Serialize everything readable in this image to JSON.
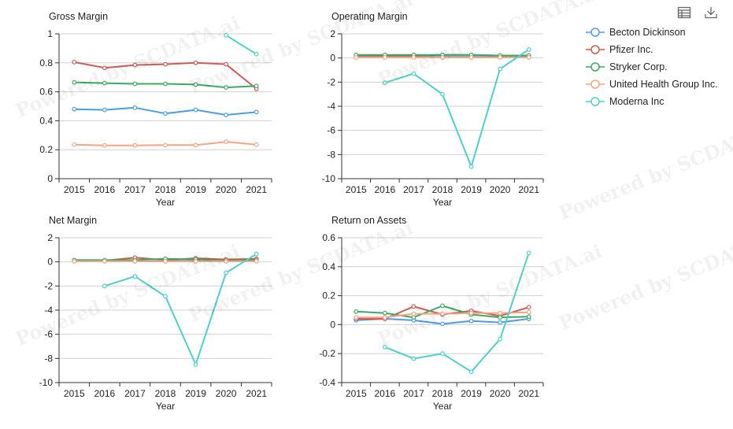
{
  "toolbar": {
    "table_icon": "table-icon",
    "download_icon": "download-icon"
  },
  "watermark": "Powered by SCDATA.ai",
  "colors": {
    "Becton Dickinson": "#4e9be6",
    "Pfizer Inc.": "#cf5a55",
    "Stryker Corp.": "#3daa64",
    "United Health Group Inc.": "#f3a583",
    "Moderna Inc": "#4dd0cb"
  },
  "legend": [
    {
      "label": "Becton Dickinson"
    },
    {
      "label": "Pfizer Inc."
    },
    {
      "label": "Stryker Corp."
    },
    {
      "label": "United Health Group Inc."
    },
    {
      "label": "Moderna Inc"
    }
  ],
  "chart_data": [
    {
      "type": "line",
      "title": "Gross Margin",
      "xlabel": "Year",
      "ylabel": "",
      "categories": [
        "2015",
        "2016",
        "2017",
        "2018",
        "2019",
        "2020",
        "2021"
      ],
      "ylim": [
        0,
        1
      ],
      "yticks": [
        "0",
        "0.2",
        "0.4",
        "0.6",
        "0.8",
        "1"
      ],
      "ytick_values": [
        0,
        0.2,
        0.4,
        0.6,
        0.8,
        1
      ],
      "series": [
        {
          "name": "Becton Dickinson",
          "values": [
            0.48,
            0.475,
            0.49,
            0.45,
            0.475,
            0.44,
            0.46
          ]
        },
        {
          "name": "Pfizer Inc.",
          "values": [
            0.805,
            0.765,
            0.785,
            0.79,
            0.8,
            0.79,
            0.62
          ]
        },
        {
          "name": "Stryker Corp.",
          "values": [
            0.665,
            0.66,
            0.655,
            0.655,
            0.65,
            0.63,
            0.64
          ]
        },
        {
          "name": "United Health Group Inc.",
          "values": [
            0.235,
            0.23,
            0.23,
            0.232,
            0.232,
            0.255,
            0.235
          ]
        },
        {
          "name": "Moderna Inc",
          "values": [
            null,
            null,
            null,
            null,
            null,
            0.99,
            0.86
          ]
        }
      ]
    },
    {
      "type": "line",
      "title": "Operating Margin",
      "xlabel": "Year",
      "ylabel": "",
      "categories": [
        "2015",
        "2016",
        "2017",
        "2018",
        "2019",
        "2020",
        "2021"
      ],
      "ylim": [
        -10,
        2
      ],
      "yticks": [
        "-10",
        "-8",
        "-6",
        "-4",
        "-2",
        "0",
        "2"
      ],
      "ytick_values": [
        -10,
        -8,
        -6,
        -4,
        -2,
        0,
        2
      ],
      "series": [
        {
          "name": "Becton Dickinson",
          "values": [
            0.1,
            0.1,
            0.1,
            0.1,
            0.1,
            0.1,
            0.15
          ]
        },
        {
          "name": "Pfizer Inc.",
          "values": [
            0.2,
            0.2,
            0.2,
            0.25,
            0.25,
            0.2,
            0.2
          ]
        },
        {
          "name": "Stryker Corp.",
          "values": [
            0.25,
            0.25,
            0.25,
            0.25,
            0.25,
            0.2,
            0.2
          ]
        },
        {
          "name": "United Health Group Inc.",
          "values": [
            0.05,
            0.05,
            0.05,
            0.05,
            0.05,
            0.05,
            0.05
          ]
        },
        {
          "name": "Moderna Inc",
          "values": [
            null,
            -2.05,
            -1.3,
            -3.0,
            -9.0,
            -0.9,
            0.7
          ]
        }
      ]
    },
    {
      "type": "line",
      "title": "Net Margin",
      "xlabel": "Year",
      "ylabel": "",
      "categories": [
        "2015",
        "2016",
        "2017",
        "2018",
        "2019",
        "2020",
        "2021"
      ],
      "ylim": [
        -10,
        2
      ],
      "yticks": [
        "-10",
        "-8",
        "-6",
        "-4",
        "-2",
        "0",
        "2"
      ],
      "ytick_values": [
        -10,
        -8,
        -6,
        -4,
        -2,
        0,
        2
      ],
      "series": [
        {
          "name": "Becton Dickinson",
          "values": [
            0.1,
            0.1,
            0.05,
            0.05,
            0.1,
            0.05,
            0.1
          ]
        },
        {
          "name": "Pfizer Inc.",
          "values": [
            0.1,
            0.1,
            0.35,
            0.15,
            0.3,
            0.2,
            0.25
          ]
        },
        {
          "name": "Stryker Corp.",
          "values": [
            0.15,
            0.15,
            0.15,
            0.25,
            0.2,
            0.1,
            0.15
          ]
        },
        {
          "name": "United Health Group Inc.",
          "values": [
            0.05,
            0.05,
            0.05,
            0.05,
            0.05,
            0.05,
            0.05
          ]
        },
        {
          "name": "Moderna Inc",
          "values": [
            null,
            -2.0,
            -1.2,
            -2.85,
            -8.5,
            -0.9,
            0.65
          ]
        }
      ]
    },
    {
      "type": "line",
      "title": "Return on Assets",
      "xlabel": "Year",
      "ylabel": "",
      "categories": [
        "2015",
        "2016",
        "2017",
        "2018",
        "2019",
        "2020",
        "2021"
      ],
      "ylim": [
        -0.4,
        0.6
      ],
      "yticks": [
        "-0.4",
        "-0.2",
        "0",
        "0.2",
        "0.4",
        "0.6"
      ],
      "ytick_values": [
        -0.4,
        -0.2,
        0,
        0.2,
        0.4,
        0.6
      ],
      "series": [
        {
          "name": "Becton Dickinson",
          "values": [
            0.03,
            0.04,
            0.03,
            0.005,
            0.025,
            0.015,
            0.04
          ]
        },
        {
          "name": "Pfizer Inc.",
          "values": [
            0.04,
            0.04,
            0.125,
            0.07,
            0.095,
            0.06,
            0.12
          ]
        },
        {
          "name": "Stryker Corp.",
          "values": [
            0.09,
            0.08,
            0.05,
            0.13,
            0.07,
            0.05,
            0.055
          ]
        },
        {
          "name": "United Health Group Inc.",
          "values": [
            0.05,
            0.05,
            0.075,
            0.075,
            0.08,
            0.08,
            0.085
          ]
        },
        {
          "name": "Moderna Inc",
          "values": [
            null,
            -0.155,
            -0.235,
            -0.2,
            -0.325,
            -0.1,
            0.495
          ]
        }
      ]
    }
  ]
}
